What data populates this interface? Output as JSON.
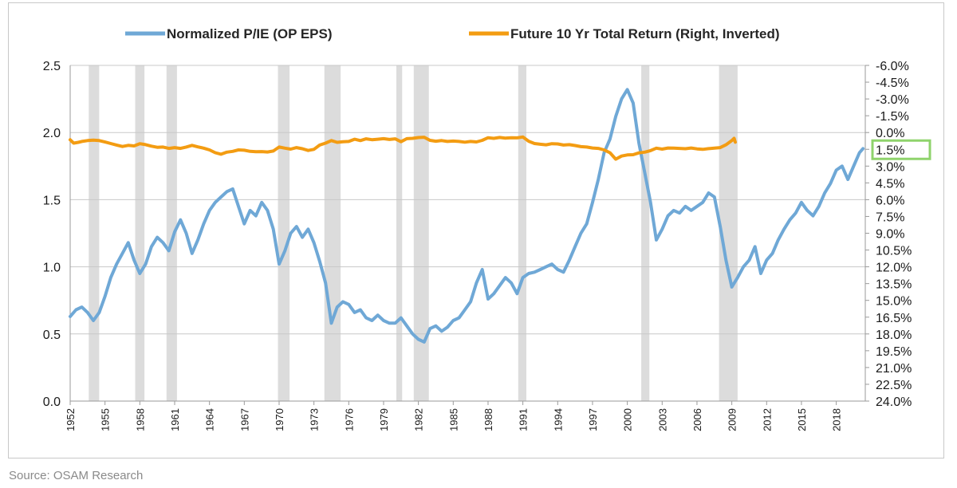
{
  "source": "Source: OSAM Research",
  "colors": {
    "pie": "#6fa8d6",
    "ret": "#f39c12",
    "recession": "#dcdcdc",
    "highlight": "#8fd36c",
    "grid": "#c8c8c8"
  },
  "chart_data": {
    "type": "line",
    "title": "",
    "legend": {
      "placement": "top"
    },
    "grid": true,
    "series": [
      {
        "name": "Normalized P/IE (OP EPS)",
        "axis": "left",
        "points": [
          [
            1952.0,
            0.63
          ],
          [
            1952.5,
            0.68
          ],
          [
            1953.0,
            0.7
          ],
          [
            1953.5,
            0.66
          ],
          [
            1954.0,
            0.6
          ],
          [
            1954.5,
            0.66
          ],
          [
            1955.0,
            0.78
          ],
          [
            1955.5,
            0.92
          ],
          [
            1956.0,
            1.02
          ],
          [
            1956.5,
            1.1
          ],
          [
            1957.0,
            1.18
          ],
          [
            1957.5,
            1.05
          ],
          [
            1958.0,
            0.95
          ],
          [
            1958.5,
            1.02
          ],
          [
            1959.0,
            1.15
          ],
          [
            1959.5,
            1.22
          ],
          [
            1960.0,
            1.18
          ],
          [
            1960.5,
            1.12
          ],
          [
            1961.0,
            1.26
          ],
          [
            1961.5,
            1.35
          ],
          [
            1962.0,
            1.25
          ],
          [
            1962.5,
            1.1
          ],
          [
            1963.0,
            1.2
          ],
          [
            1963.5,
            1.32
          ],
          [
            1964.0,
            1.42
          ],
          [
            1964.5,
            1.48
          ],
          [
            1965.0,
            1.52
          ],
          [
            1965.5,
            1.56
          ],
          [
            1966.0,
            1.58
          ],
          [
            1966.5,
            1.45
          ],
          [
            1967.0,
            1.32
          ],
          [
            1967.5,
            1.42
          ],
          [
            1968.0,
            1.38
          ],
          [
            1968.5,
            1.48
          ],
          [
            1969.0,
            1.42
          ],
          [
            1969.5,
            1.28
          ],
          [
            1970.0,
            1.02
          ],
          [
            1970.5,
            1.12
          ],
          [
            1971.0,
            1.25
          ],
          [
            1971.5,
            1.3
          ],
          [
            1972.0,
            1.22
          ],
          [
            1972.5,
            1.28
          ],
          [
            1973.0,
            1.18
          ],
          [
            1973.5,
            1.04
          ],
          [
            1974.0,
            0.88
          ],
          [
            1974.5,
            0.58
          ],
          [
            1975.0,
            0.7
          ],
          [
            1975.5,
            0.74
          ],
          [
            1976.0,
            0.72
          ],
          [
            1976.5,
            0.66
          ],
          [
            1977.0,
            0.68
          ],
          [
            1977.5,
            0.62
          ],
          [
            1978.0,
            0.6
          ],
          [
            1978.5,
            0.64
          ],
          [
            1979.0,
            0.6
          ],
          [
            1979.5,
            0.58
          ],
          [
            1980.0,
            0.58
          ],
          [
            1980.5,
            0.62
          ],
          [
            1981.0,
            0.56
          ],
          [
            1981.5,
            0.5
          ],
          [
            1982.0,
            0.46
          ],
          [
            1982.5,
            0.44
          ],
          [
            1983.0,
            0.54
          ],
          [
            1983.5,
            0.56
          ],
          [
            1984.0,
            0.52
          ],
          [
            1984.5,
            0.55
          ],
          [
            1985.0,
            0.6
          ],
          [
            1985.5,
            0.62
          ],
          [
            1986.0,
            0.68
          ],
          [
            1986.5,
            0.74
          ],
          [
            1987.0,
            0.88
          ],
          [
            1987.5,
            0.98
          ],
          [
            1988.0,
            0.76
          ],
          [
            1988.5,
            0.8
          ],
          [
            1989.0,
            0.86
          ],
          [
            1989.5,
            0.92
          ],
          [
            1990.0,
            0.88
          ],
          [
            1990.5,
            0.8
          ],
          [
            1991.0,
            0.92
          ],
          [
            1991.5,
            0.95
          ],
          [
            1992.0,
            0.96
          ],
          [
            1992.5,
            0.98
          ],
          [
            1993.0,
            1.0
          ],
          [
            1993.5,
            1.02
          ],
          [
            1994.0,
            0.98
          ],
          [
            1994.5,
            0.96
          ],
          [
            1995.0,
            1.05
          ],
          [
            1995.5,
            1.15
          ],
          [
            1996.0,
            1.25
          ],
          [
            1996.5,
            1.32
          ],
          [
            1997.0,
            1.48
          ],
          [
            1997.5,
            1.65
          ],
          [
            1998.0,
            1.85
          ],
          [
            1998.5,
            1.95
          ],
          [
            1999.0,
            2.12
          ],
          [
            1999.5,
            2.25
          ],
          [
            2000.0,
            2.32
          ],
          [
            2000.5,
            2.22
          ],
          [
            2001.0,
            1.92
          ],
          [
            2001.5,
            1.7
          ],
          [
            2002.0,
            1.48
          ],
          [
            2002.5,
            1.2
          ],
          [
            2003.0,
            1.28
          ],
          [
            2003.5,
            1.38
          ],
          [
            2004.0,
            1.42
          ],
          [
            2004.5,
            1.4
          ],
          [
            2005.0,
            1.45
          ],
          [
            2005.5,
            1.42
          ],
          [
            2006.0,
            1.45
          ],
          [
            2006.5,
            1.48
          ],
          [
            2007.0,
            1.55
          ],
          [
            2007.5,
            1.52
          ],
          [
            2008.0,
            1.3
          ],
          [
            2008.5,
            1.05
          ],
          [
            2009.0,
            0.85
          ],
          [
            2009.5,
            0.92
          ],
          [
            2010.0,
            1.0
          ],
          [
            2010.5,
            1.05
          ],
          [
            2011.0,
            1.15
          ],
          [
            2011.5,
            0.95
          ],
          [
            2012.0,
            1.05
          ],
          [
            2012.5,
            1.1
          ],
          [
            2013.0,
            1.2
          ],
          [
            2013.5,
            1.28
          ],
          [
            2014.0,
            1.35
          ],
          [
            2014.5,
            1.4
          ],
          [
            2015.0,
            1.48
          ],
          [
            2015.5,
            1.42
          ],
          [
            2016.0,
            1.38
          ],
          [
            2016.5,
            1.45
          ],
          [
            2017.0,
            1.55
          ],
          [
            2017.5,
            1.62
          ],
          [
            2018.0,
            1.72
          ],
          [
            2018.5,
            1.75
          ],
          [
            2019.0,
            1.65
          ],
          [
            2019.5,
            1.75
          ],
          [
            2020.0,
            1.85
          ],
          [
            2020.3,
            1.88
          ]
        ]
      },
      {
        "name": "Future 10 Yr Total Return (Right, Inverted)",
        "axis": "right",
        "points": [
          [
            1952.0,
            0.65
          ],
          [
            1952.3,
            0.95
          ],
          [
            1952.7,
            0.88
          ],
          [
            1953.0,
            0.8
          ],
          [
            1953.5,
            0.72
          ],
          [
            1954.0,
            0.68
          ],
          [
            1954.5,
            0.72
          ],
          [
            1955.0,
            0.85
          ],
          [
            1955.5,
            0.98
          ],
          [
            1956.0,
            1.12
          ],
          [
            1956.5,
            1.25
          ],
          [
            1957.0,
            1.15
          ],
          [
            1957.5,
            1.2
          ],
          [
            1958.0,
            1.0
          ],
          [
            1958.5,
            1.08
          ],
          [
            1959.0,
            1.22
          ],
          [
            1959.5,
            1.32
          ],
          [
            1960.0,
            1.3
          ],
          [
            1960.5,
            1.42
          ],
          [
            1961.0,
            1.35
          ],
          [
            1961.5,
            1.42
          ],
          [
            1962.0,
            1.3
          ],
          [
            1962.5,
            1.15
          ],
          [
            1963.0,
            1.28
          ],
          [
            1963.5,
            1.4
          ],
          [
            1964.0,
            1.55
          ],
          [
            1964.5,
            1.8
          ],
          [
            1965.0,
            1.94
          ],
          [
            1965.5,
            1.75
          ],
          [
            1966.0,
            1.68
          ],
          [
            1966.5,
            1.55
          ],
          [
            1967.0,
            1.58
          ],
          [
            1967.5,
            1.68
          ],
          [
            1968.0,
            1.72
          ],
          [
            1968.5,
            1.7
          ],
          [
            1969.0,
            1.74
          ],
          [
            1969.5,
            1.65
          ],
          [
            1970.0,
            1.3
          ],
          [
            1970.5,
            1.4
          ],
          [
            1971.0,
            1.48
          ],
          [
            1971.5,
            1.35
          ],
          [
            1972.0,
            1.45
          ],
          [
            1972.5,
            1.6
          ],
          [
            1973.0,
            1.5
          ],
          [
            1973.5,
            1.12
          ],
          [
            1974.0,
            0.95
          ],
          [
            1974.5,
            0.72
          ],
          [
            1975.0,
            0.88
          ],
          [
            1975.5,
            0.82
          ],
          [
            1976.0,
            0.8
          ],
          [
            1976.5,
            0.6
          ],
          [
            1977.0,
            0.72
          ],
          [
            1977.5,
            0.56
          ],
          [
            1978.0,
            0.64
          ],
          [
            1978.5,
            0.6
          ],
          [
            1979.0,
            0.55
          ],
          [
            1979.5,
            0.62
          ],
          [
            1980.0,
            0.56
          ],
          [
            1980.5,
            0.82
          ],
          [
            1981.0,
            0.55
          ],
          [
            1981.5,
            0.52
          ],
          [
            1982.0,
            0.45
          ],
          [
            1982.5,
            0.42
          ],
          [
            1983.0,
            0.7
          ],
          [
            1983.5,
            0.78
          ],
          [
            1984.0,
            0.72
          ],
          [
            1984.5,
            0.8
          ],
          [
            1985.0,
            0.76
          ],
          [
            1985.5,
            0.8
          ],
          [
            1986.0,
            0.86
          ],
          [
            1986.5,
            0.8
          ],
          [
            1987.0,
            0.84
          ],
          [
            1987.5,
            0.7
          ],
          [
            1988.0,
            0.46
          ],
          [
            1988.5,
            0.52
          ],
          [
            1989.0,
            0.44
          ],
          [
            1989.5,
            0.5
          ],
          [
            1990.0,
            0.46
          ],
          [
            1990.5,
            0.48
          ],
          [
            1991.0,
            0.4
          ],
          [
            1991.5,
            0.78
          ],
          [
            1992.0,
            0.98
          ],
          [
            1992.5,
            1.05
          ],
          [
            1993.0,
            1.1
          ],
          [
            1993.5,
            1.0
          ],
          [
            1994.0,
            1.02
          ],
          [
            1994.5,
            1.12
          ],
          [
            1995.0,
            1.08
          ],
          [
            1995.5,
            1.16
          ],
          [
            1996.0,
            1.26
          ],
          [
            1996.5,
            1.3
          ],
          [
            1997.0,
            1.38
          ],
          [
            1997.5,
            1.42
          ],
          [
            1998.0,
            1.55
          ],
          [
            1998.5,
            1.8
          ],
          [
            1999.0,
            2.38
          ],
          [
            1999.5,
            2.1
          ],
          [
            2000.0,
            2.0
          ],
          [
            2000.5,
            1.98
          ],
          [
            2001.0,
            1.82
          ],
          [
            2001.5,
            1.75
          ],
          [
            2002.0,
            1.62
          ],
          [
            2002.5,
            1.4
          ],
          [
            2003.0,
            1.48
          ],
          [
            2003.5,
            1.38
          ],
          [
            2004.0,
            1.4
          ],
          [
            2004.5,
            1.42
          ],
          [
            2005.0,
            1.45
          ],
          [
            2005.5,
            1.38
          ],
          [
            2006.0,
            1.46
          ],
          [
            2006.5,
            1.5
          ],
          [
            2007.0,
            1.44
          ],
          [
            2007.5,
            1.4
          ],
          [
            2008.0,
            1.35
          ],
          [
            2008.5,
            1.1
          ],
          [
            2009.0,
            0.72
          ],
          [
            2009.2,
            0.52
          ],
          [
            2009.3,
            0.86
          ]
        ]
      }
    ],
    "left_axis": {
      "ylim": [
        0,
        2.5
      ],
      "ticks": [
        "0.0",
        "0.5",
        "1.0",
        "1.5",
        "2.0",
        "2.5"
      ]
    },
    "right_axis": {
      "range_top": -6.0,
      "range_bottom": 24.0,
      "inverted": true,
      "ticks": [
        "-6.0%",
        "-4.5%",
        "-3.0%",
        "-1.5%",
        "0.0%",
        "1.5%",
        "3.0%",
        "4.5%",
        "6.0%",
        "7.5%",
        "9.0%",
        "10.5%",
        "12.0%",
        "13.5%",
        "15.0%",
        "16.5%",
        "18.0%",
        "19.5%",
        "21.0%",
        "22.5%",
        "24.0%"
      ],
      "highlighted_tick": "1.5%"
    },
    "x_axis": {
      "xlim": [
        1952,
        2020.5
      ],
      "ticks": [
        "1952",
        "1955",
        "1958",
        "1961",
        "1964",
        "1967",
        "1970",
        "1973",
        "1976",
        "1979",
        "1982",
        "1985",
        "1988",
        "1991",
        "1994",
        "1997",
        "2000",
        "2003",
        "2006",
        "2009",
        "2012",
        "2015",
        "2018"
      ]
    },
    "recessions": [
      [
        1953.6,
        1954.5
      ],
      [
        1957.6,
        1958.4
      ],
      [
        1960.3,
        1961.2
      ],
      [
        1969.9,
        1970.9
      ],
      [
        1973.9,
        1975.3
      ],
      [
        1980.1,
        1980.6
      ],
      [
        1981.6,
        1982.9
      ],
      [
        1990.6,
        1991.3
      ],
      [
        2001.2,
        2001.9
      ],
      [
        2007.9,
        2009.5
      ]
    ]
  }
}
